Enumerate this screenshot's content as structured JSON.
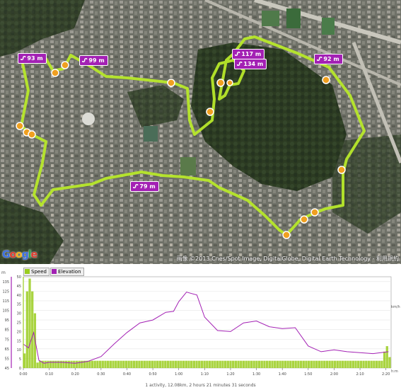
{
  "map": {
    "elevation_markers": [
      {
        "value": "93",
        "unit": "m"
      },
      {
        "value": "99",
        "unit": "m"
      },
      {
        "value": "117",
        "unit": "m"
      },
      {
        "value": "134",
        "unit": "m"
      },
      {
        "value": "92",
        "unit": "m"
      },
      {
        "value": "79",
        "unit": "m"
      }
    ],
    "copyright": "画像 ©2013 Cnes/Spot Image, DigitalGlobe, Digital Earth Technology - 利用規約",
    "logo": "Google",
    "route_color": "#b7e82a",
    "marker_color": "#a321b4"
  },
  "chart": {
    "legend": [
      {
        "label": "Speed",
        "color": "#9acd1e"
      },
      {
        "label": "Elevation",
        "color": "#a321b4"
      }
    ],
    "left_axis_unit": "m",
    "right_axis_unit": "km/h",
    "x_axis_unit": "h:m",
    "footer": "1 activity, 12.08km, 2 hours 21 minutes 31 seconds"
  },
  "chart_data": {
    "type": "area",
    "x_ticks": [
      "0:00",
      "0:10",
      "0:20",
      "0:30",
      "0:40",
      "0:50",
      "1:00",
      "1:10",
      "1:20",
      "1:30",
      "1:40",
      "1:50",
      "2:00",
      "2:10",
      "2:20"
    ],
    "elevation": {
      "ylim": [
        45,
        140
      ],
      "ticks": [
        45,
        55,
        65,
        75,
        85,
        95,
        105,
        115,
        125,
        135
      ],
      "series_minutes": [
        0,
        2,
        4,
        6,
        8,
        10,
        15,
        20,
        25,
        30,
        35,
        40,
        45,
        50,
        55,
        58,
        60,
        63,
        67,
        70,
        75,
        80,
        85,
        90,
        95,
        100,
        105,
        110,
        115,
        120,
        125,
        130,
        135,
        141
      ],
      "values_m": [
        70,
        66,
        82,
        53,
        50,
        51,
        51,
        50,
        52,
        57,
        70,
        82,
        92,
        95,
        103,
        104,
        114,
        124,
        121,
        98,
        84,
        83,
        92,
        94,
        88,
        86,
        87,
        68,
        62,
        64,
        62,
        61,
        60,
        62
      ]
    },
    "speed": {
      "ylim": [
        0,
        50
      ],
      "ticks": [
        0,
        5,
        10,
        15,
        20,
        25,
        30,
        35,
        40,
        45,
        50
      ],
      "bars_minutes_note": "per-minute speed bars",
      "values_kmh": [
        8,
        42,
        49,
        42,
        30,
        3,
        4,
        4,
        4,
        4,
        4,
        4,
        4,
        4,
        4,
        4,
        4,
        4,
        4,
        4,
        4,
        4,
        4,
        4,
        4,
        4,
        4,
        4,
        4,
        4,
        4,
        4,
        4,
        4,
        4,
        4,
        4,
        4,
        4,
        4,
        4,
        4,
        4,
        4,
        4,
        4,
        4,
        4,
        4,
        4,
        4,
        4,
        4,
        4,
        4,
        4,
        4,
        4,
        4,
        4,
        4,
        4,
        4,
        4,
        4,
        4,
        4,
        4,
        4,
        4,
        4,
        4,
        4,
        4,
        4,
        4,
        4,
        4,
        4,
        4,
        4,
        4,
        4,
        4,
        4,
        4,
        4,
        4,
        4,
        4,
        4,
        4,
        4,
        4,
        4,
        4,
        4,
        4,
        4,
        4,
        4,
        4,
        4,
        4,
        4,
        4,
        4,
        4,
        4,
        4,
        4,
        4,
        4,
        4,
        4,
        4,
        4,
        4,
        4,
        4,
        4,
        4,
        4,
        4,
        4,
        4,
        4,
        4,
        4,
        4,
        4,
        4,
        4,
        4,
        4,
        4,
        4,
        4,
        9,
        12,
        6
      ]
    }
  }
}
